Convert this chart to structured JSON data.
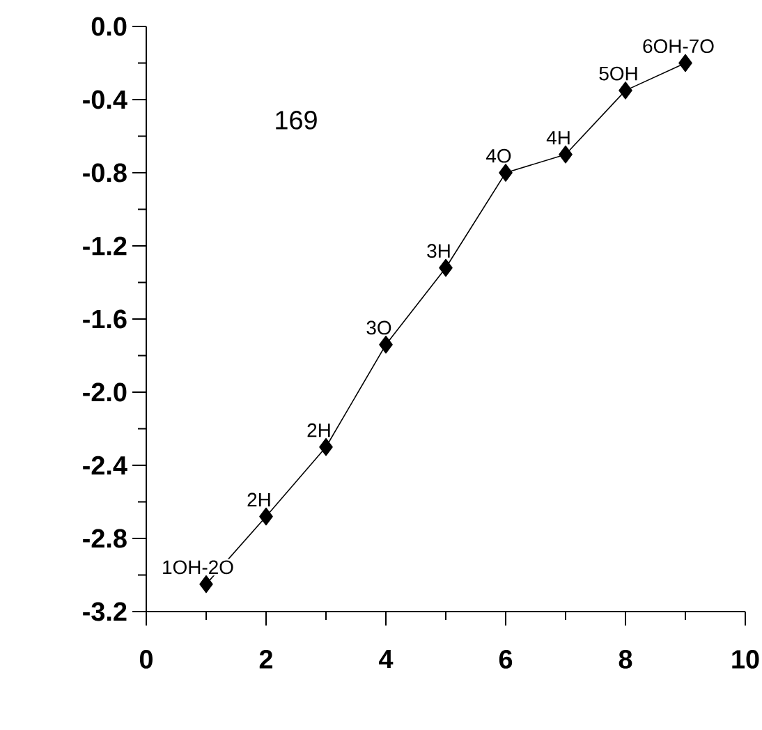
{
  "chart_data": {
    "type": "line",
    "x": [
      1,
      2,
      3,
      4,
      5,
      6,
      7,
      8,
      9
    ],
    "series": [
      {
        "color": "#000000",
        "values": [
          -3.05,
          -2.68,
          -2.3,
          -1.74,
          -1.32,
          -0.8,
          -0.7,
          -0.35,
          -0.2
        ]
      }
    ],
    "marker": "diamond",
    "line_style": "solid",
    "xlim": [
      0,
      10
    ],
    "ylim": [
      -3.2,
      0.0
    ],
    "xticks": [
      0,
      {
        "value": 1,
        "label": null
      },
      2,
      {
        "value": 3,
        "label": null
      },
      4,
      {
        "value": 5,
        "label": null
      },
      6,
      {
        "value": 7,
        "label": null
      },
      8,
      {
        "value": 9,
        "label": null
      },
      10
    ],
    "yticks": [
      {
        "value": -3.2,
        "label": "-3.2"
      },
      {
        "value": -3.0,
        "label": null
      },
      {
        "value": -2.8,
        "label": "-2.8"
      },
      {
        "value": -2.6,
        "label": null
      },
      {
        "value": -2.4,
        "label": "-2.4"
      },
      {
        "value": -2.2,
        "label": null
      },
      {
        "value": -2.0,
        "label": "-2.0"
      },
      {
        "value": -1.8,
        "label": null
      },
      {
        "value": -1.6,
        "label": "-1.6"
      },
      {
        "value": -1.4,
        "label": null
      },
      {
        "value": -1.2,
        "label": "-1.2"
      },
      {
        "value": -1.0,
        "label": null
      },
      {
        "value": -0.8,
        "label": "-0.8"
      },
      {
        "value": -0.6,
        "label": null
      },
      {
        "value": -0.4,
        "label": "-0.4"
      },
      {
        "value": -0.2,
        "label": null
      },
      {
        "value": 0.0,
        "label": "0.0"
      }
    ],
    "annotations": [
      "169",
      {
        "text": "1OH-2O",
        "x": 1,
        "y": -3.05
      },
      {
        "text": "2H",
        "x": 2,
        "y": -2.68
      },
      {
        "text": "2H",
        "x": 3,
        "y": -2.3
      },
      {
        "text": "3O",
        "x": 4,
        "y": -1.74
      },
      {
        "text": "3H",
        "x": 5,
        "y": -1.32
      },
      {
        "text": "4O",
        "x": 6,
        "y": -0.8
      },
      {
        "text": "4H",
        "x": 7,
        "y": -0.7
      },
      {
        "text": "5OH",
        "x": 8,
        "y": -0.35
      },
      {
        "text": "6OH-7O",
        "x": 9,
        "y": -0.2
      }
    ]
  }
}
